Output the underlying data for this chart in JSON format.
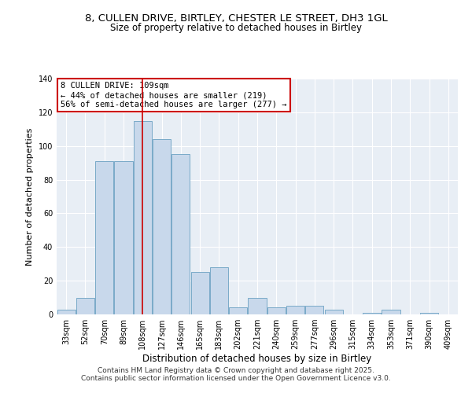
{
  "title_line1": "8, CULLEN DRIVE, BIRTLEY, CHESTER LE STREET, DH3 1GL",
  "title_line2": "Size of property relative to detached houses in Birtley",
  "xlabel": "Distribution of detached houses by size in Birtley",
  "ylabel": "Number of detached properties",
  "bar_color": "#c8d8eb",
  "bar_edge_color": "#7aaac8",
  "highlight_line_color": "#cc0000",
  "background_color": "#e8eef5",
  "categories": [
    "33sqm",
    "52sqm",
    "70sqm",
    "89sqm",
    "108sqm",
    "127sqm",
    "146sqm",
    "165sqm",
    "183sqm",
    "202sqm",
    "221sqm",
    "240sqm",
    "259sqm",
    "277sqm",
    "296sqm",
    "315sqm",
    "334sqm",
    "353sqm",
    "371sqm",
    "390sqm",
    "409sqm"
  ],
  "values": [
    3,
    10,
    91,
    91,
    115,
    104,
    95,
    25,
    28,
    4,
    10,
    4,
    5,
    5,
    3,
    0,
    1,
    3,
    0,
    1,
    0
  ],
  "highlight_index": 4,
  "annotation_title": "8 CULLEN DRIVE: 109sqm",
  "annotation_line1": "← 44% of detached houses are smaller (219)",
  "annotation_line2": "56% of semi-detached houses are larger (277) →",
  "ylim": [
    0,
    140
  ],
  "yticks": [
    0,
    20,
    40,
    60,
    80,
    100,
    120,
    140
  ],
  "footer_line1": "Contains HM Land Registry data © Crown copyright and database right 2025.",
  "footer_line2": "Contains public sector information licensed under the Open Government Licence v3.0."
}
